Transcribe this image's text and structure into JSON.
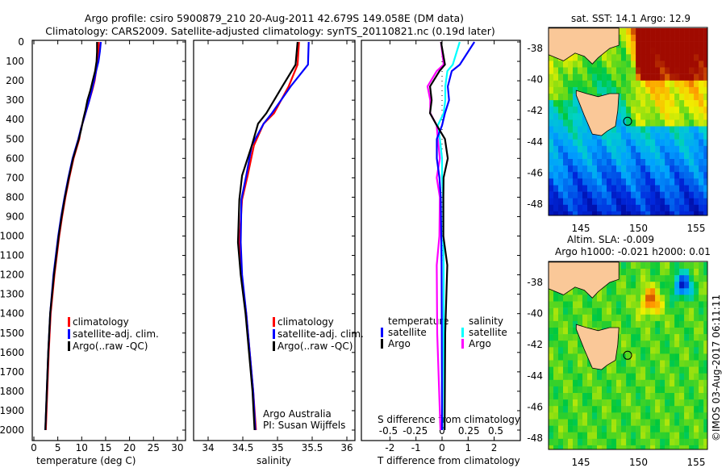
{
  "header": {
    "title_line1": "Argo profile: csiro 5900879_210 20-Aug-2011 42.679S 149.058E (DM data)",
    "title_line2": "Climatology: CARS2009. Satellite-adjusted climatology: synTS_20110821.nc (0.19d later)"
  },
  "colors": {
    "climatology": "#ff0000",
    "satellite": "#0000ff",
    "argo": "#000000",
    "sal_satellite": "#00ffff",
    "sal_argo": "#ff00ff"
  },
  "chart_data": [
    {
      "type": "line",
      "xlabel": "temperature (deg C)",
      "xlim": [
        -2,
        31
      ],
      "xticks": [
        0,
        5,
        10,
        15,
        20,
        25,
        30
      ],
      "ylim": [
        2060,
        0
      ],
      "yticks": [
        0,
        100,
        200,
        300,
        400,
        500,
        600,
        700,
        800,
        900,
        1000,
        1100,
        1200,
        1300,
        1400,
        1500,
        1600,
        1700,
        1800,
        1900,
        2000
      ],
      "depth": [
        0,
        50,
        100,
        150,
        200,
        250,
        300,
        350,
        400,
        450,
        500,
        600,
        700,
        800,
        900,
        1000,
        1200,
        1400,
        1600,
        1800,
        2000
      ],
      "series": [
        {
          "name": "climatology",
          "values": [
            13.6,
            13.5,
            13.3,
            13.0,
            12.7,
            12.2,
            11.6,
            11.0,
            10.4,
            9.8,
            9.5,
            8.3,
            7.4,
            6.6,
            5.9,
            5.3,
            4.3,
            3.5,
            3.1,
            2.8,
            2.5
          ]
        },
        {
          "name": "satellite-adj. clim.",
          "values": [
            14.0,
            13.8,
            13.5,
            13.0,
            12.6,
            12.1,
            11.6,
            11.0,
            10.4,
            9.8,
            9.3,
            8.1,
            7.2,
            6.4,
            5.7,
            5.1,
            4.1,
            3.4,
            3.0,
            2.7,
            2.4
          ]
        },
        {
          "name": "Argo(..raw -QC)",
          "values": [
            13.2,
            13.2,
            13.1,
            12.8,
            12.3,
            11.8,
            11.2,
            10.8,
            10.3,
            9.9,
            9.4,
            8.2,
            7.3,
            6.5,
            5.8,
            5.2,
            4.2,
            3.4,
            3.0,
            2.7,
            2.4
          ]
        }
      ],
      "legend": [
        "climatology",
        "satellite-adj. clim.",
        "Argo(..raw -QC)"
      ]
    },
    {
      "type": "line",
      "xlabel": "salinity",
      "xlim": [
        33.7,
        36.1
      ],
      "xticks": [
        "34",
        "34.5",
        "35",
        "35.5",
        "36"
      ],
      "depth": [
        0,
        117,
        229,
        367,
        421,
        533,
        688,
        812,
        1033,
        1200,
        1400,
        1600,
        1800,
        2000
      ],
      "series": [
        {
          "name": "climatology",
          "values": [
            35.31,
            35.29,
            35.16,
            34.95,
            34.8,
            34.66,
            34.57,
            34.49,
            34.45,
            34.48,
            34.55,
            34.6,
            34.65,
            34.69
          ]
        },
        {
          "name": "satellite-adj. clim.",
          "values": [
            35.45,
            35.44,
            35.19,
            34.92,
            34.8,
            34.63,
            34.55,
            34.48,
            34.47,
            34.49,
            34.55,
            34.6,
            34.65,
            34.68
          ]
        },
        {
          "name": "Argo(..raw -QC)",
          "values": [
            35.29,
            35.26,
            35.07,
            34.84,
            34.72,
            34.63,
            34.49,
            34.45,
            34.43,
            34.47,
            34.54,
            34.59,
            34.64,
            34.67
          ]
        }
      ],
      "legend": [
        "climatology",
        "satellite-adj. clim.",
        "Argo(..raw -QC)"
      ],
      "annotation_line1": "Argo Australia",
      "annotation_line2": "PI: Susan Wijffels"
    },
    {
      "type": "line",
      "xlabel": "T difference from climatology",
      "xlim": [
        -3.1,
        3.0
      ],
      "xticks": [
        "-2",
        "-1",
        "0",
        "1",
        "2"
      ],
      "x2label": "S difference from climatology",
      "x2lim": [
        -0.75,
        0.73
      ],
      "x2ticks": [
        "-0.5",
        "-0.25",
        "0",
        "0.25",
        "0.5"
      ],
      "depth": [
        0,
        117,
        150,
        229,
        300,
        367,
        430,
        500,
        600,
        700,
        800,
        1000,
        1150,
        1500,
        2000
      ],
      "series": [
        {
          "name": "temperature satellite",
          "axis": "T",
          "values": [
            1.24,
            0.68,
            0.37,
            0.22,
            0.27,
            0.11,
            0.0,
            -0.2,
            -0.2,
            -0.1,
            -0.05,
            -0.03,
            -0.02,
            -0.01,
            0.0
          ]
        },
        {
          "name": "temperature Argo",
          "axis": "T",
          "values": [
            -0.04,
            0.11,
            -0.1,
            -0.46,
            -0.4,
            -0.46,
            -0.2,
            0.11,
            0.22,
            0.06,
            0.05,
            0.05,
            0.2,
            0.12,
            0.1
          ]
        },
        {
          "name": "salinity satellite",
          "axis": "S",
          "values": [
            0.165,
            0.1,
            0.05,
            0.03,
            0.03,
            0.015,
            -0.04,
            -0.02,
            0.0,
            0.0,
            0.01,
            0.01,
            0.015,
            0.015,
            0.02
          ]
        },
        {
          "name": "salinity Argo",
          "axis": "S",
          "values": [
            -0.01,
            0.015,
            -0.05,
            -0.135,
            -0.11,
            -0.11,
            -0.05,
            -0.04,
            -0.02,
            -0.05,
            -0.02,
            -0.025,
            -0.05,
            -0.045,
            -0.015
          ]
        }
      ],
      "legend_temperature_title": "temperature",
      "legend_salinity_title": "salinity",
      "legend_items": [
        "satellite",
        "Argo"
      ]
    }
  ],
  "maps": {
    "sst_title": "sat. SST: 14.1 Argo: 12.9",
    "sla_title_line1": "Altim. SLA: -0.009",
    "sla_title_line2": "Argo h1000: -0.021 h2000: 0.01",
    "lat_ticks": [
      "-38",
      "-40",
      "-42",
      "-44",
      "-46",
      "-48"
    ],
    "lon_ticks": [
      "145",
      "150",
      "155"
    ],
    "argo_position": {
      "lon": 149.058,
      "lat": -42.679
    }
  },
  "footer": {
    "stamp": "©IMOS 03-Aug-2017 06:11:11"
  }
}
